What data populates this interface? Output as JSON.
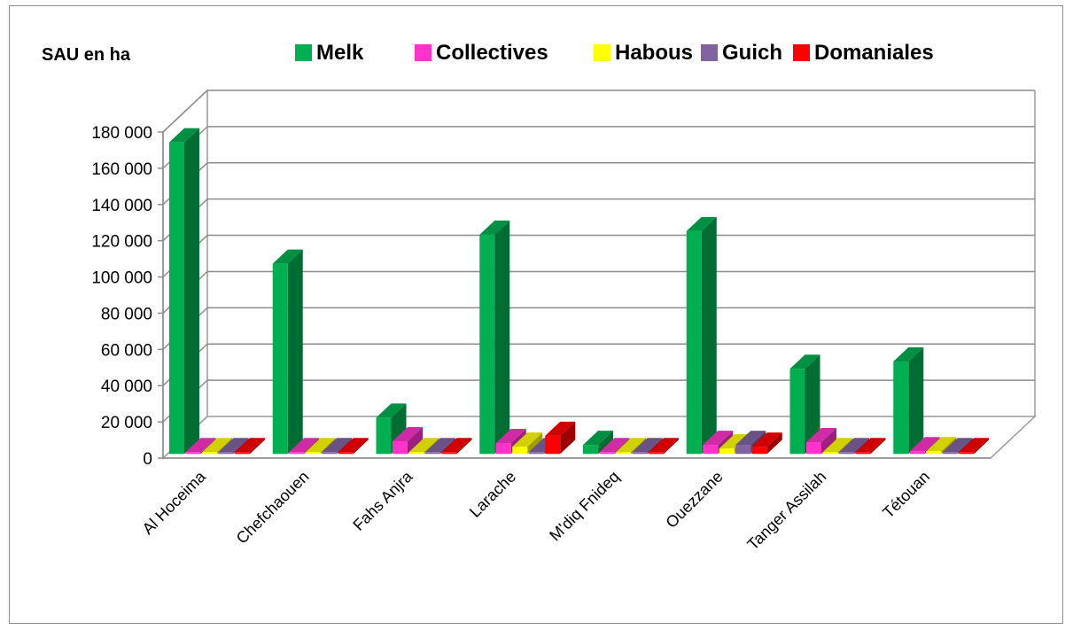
{
  "chart_data": {
    "type": "bar",
    "unit_label": "SAU en ha",
    "categories": [
      "Al Hoceima",
      "Chefchaouen",
      "Fahs Anjra",
      "Larache",
      "M'diq Fnideq",
      "Ouezzane",
      "Tanger Assilah",
      "Tétouan"
    ],
    "series": [
      {
        "name": "Melk",
        "color": "#00b050",
        "values": [
          172000,
          105000,
          20000,
          121000,
          5000,
          123000,
          47000,
          51000
        ]
      },
      {
        "name": "Collectives",
        "color": "#ff33cc",
        "values": [
          500,
          500,
          7000,
          6000,
          500,
          5000,
          6500,
          1500
        ]
      },
      {
        "name": "Habous",
        "color": "#ffff00",
        "values": [
          1000,
          500,
          500,
          4000,
          500,
          3000,
          500,
          1500
        ]
      },
      {
        "name": "Guich",
        "color": "#8064a2",
        "values": [
          500,
          500,
          500,
          500,
          500,
          5000,
          500,
          500
        ]
      },
      {
        "name": "Domaniales",
        "color": "#ff0000",
        "values": [
          500,
          500,
          500,
          10000,
          500,
          4000,
          500,
          500
        ]
      }
    ],
    "y_ticks": [
      "0",
      "20 000",
      "40 000",
      "60 000",
      "80 000",
      "100 000",
      "120 000",
      "140 000",
      "160 000",
      "180 000"
    ],
    "ylim": [
      0,
      180000
    ],
    "legend_position": "top",
    "grid": true,
    "style": "3d-clustered-column"
  }
}
